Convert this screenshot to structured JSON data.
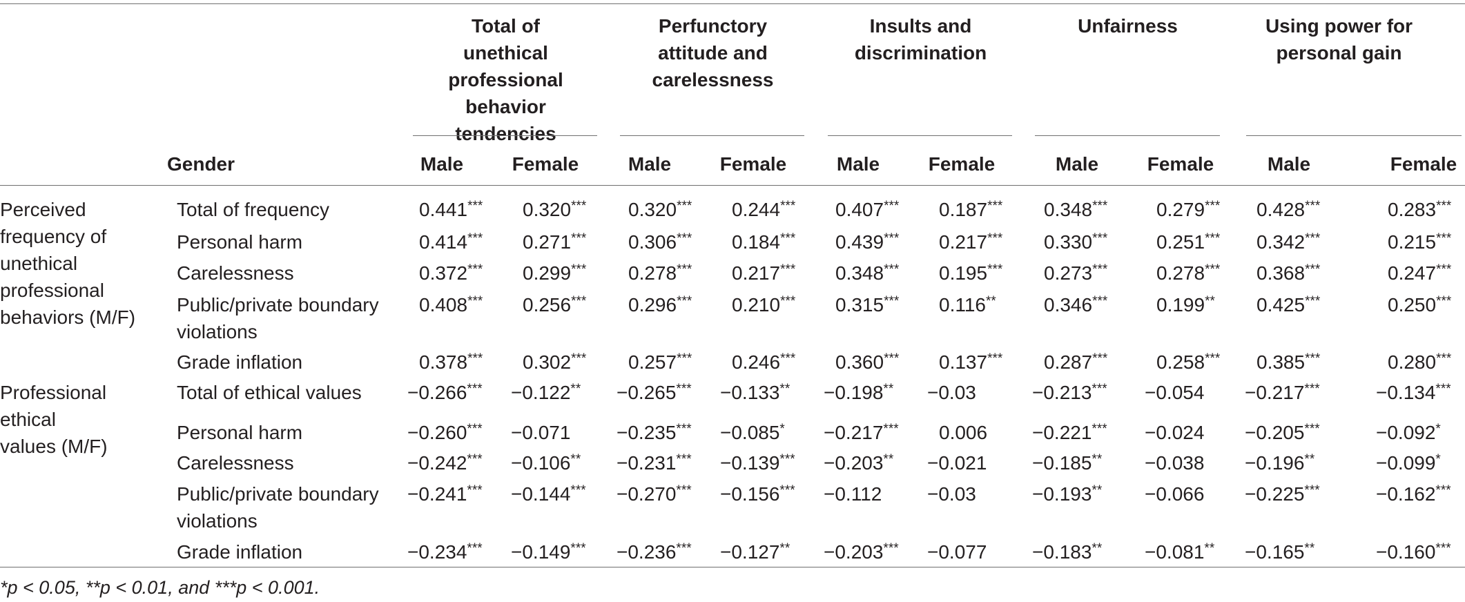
{
  "table": {
    "group_headers": [
      {
        "label": "Total of unethical professional behavior tendencies"
      },
      {
        "label": "Perfunctory attitude and carelessness"
      },
      {
        "label": "Insults and discrimination"
      },
      {
        "label": "Unfairness"
      },
      {
        "label": "Using power for personal gain"
      }
    ],
    "gender_label": "Gender",
    "sub_headers": [
      "Male",
      "Female",
      "Male",
      "Female",
      "Male",
      "Female",
      "Male",
      "Female",
      "Male",
      "Female"
    ],
    "sections": [
      {
        "label": "Perceived frequency of unethical professional behaviors (M/F)",
        "rows": [
          {
            "label": "Total of frequency",
            "cells": [
              {
                "v": "0.441",
                "s": "***"
              },
              {
                "v": "0.320",
                "s": "***"
              },
              {
                "v": "0.320",
                "s": "***"
              },
              {
                "v": "0.244",
                "s": "***"
              },
              {
                "v": "0.407",
                "s": "***"
              },
              {
                "v": "0.187",
                "s": "***"
              },
              {
                "v": "0.348",
                "s": "***"
              },
              {
                "v": "0.279",
                "s": "***"
              },
              {
                "v": "0.428",
                "s": "***"
              },
              {
                "v": "0.283",
                "s": "***"
              }
            ]
          },
          {
            "label": "Personal harm",
            "cells": [
              {
                "v": "0.414",
                "s": "***"
              },
              {
                "v": "0.271",
                "s": "***"
              },
              {
                "v": "0.306",
                "s": "***"
              },
              {
                "v": "0.184",
                "s": "***"
              },
              {
                "v": "0.439",
                "s": "***"
              },
              {
                "v": "0.217",
                "s": "***"
              },
              {
                "v": "0.330",
                "s": "***"
              },
              {
                "v": "0.251",
                "s": "***"
              },
              {
                "v": "0.342",
                "s": "***"
              },
              {
                "v": "0.215",
                "s": "***"
              }
            ]
          },
          {
            "label": "Carelessness",
            "cells": [
              {
                "v": "0.372",
                "s": "***"
              },
              {
                "v": "0.299",
                "s": "***"
              },
              {
                "v": "0.278",
                "s": "***"
              },
              {
                "v": "0.217",
                "s": "***"
              },
              {
                "v": "0.348",
                "s": "***"
              },
              {
                "v": "0.195",
                "s": "***"
              },
              {
                "v": "0.273",
                "s": "***"
              },
              {
                "v": "0.278",
                "s": "***"
              },
              {
                "v": "0.368",
                "s": "***"
              },
              {
                "v": "0.247",
                "s": "***"
              }
            ]
          },
          {
            "label": "Public/private boundary violations",
            "cells": [
              {
                "v": "0.408",
                "s": "***"
              },
              {
                "v": "0.256",
                "s": "***"
              },
              {
                "v": "0.296",
                "s": "***"
              },
              {
                "v": "0.210",
                "s": "***"
              },
              {
                "v": "0.315",
                "s": "***"
              },
              {
                "v": "0.116",
                "s": "**"
              },
              {
                "v": "0.346",
                "s": "***"
              },
              {
                "v": "0.199",
                "s": "**"
              },
              {
                "v": "0.425",
                "s": "***"
              },
              {
                "v": "0.250",
                "s": "***"
              }
            ]
          },
          {
            "label": "Grade inflation",
            "cells": [
              {
                "v": "0.378",
                "s": "***"
              },
              {
                "v": "0.302",
                "s": "***"
              },
              {
                "v": "0.257",
                "s": "***"
              },
              {
                "v": "0.246",
                "s": "***"
              },
              {
                "v": "0.360",
                "s": "***"
              },
              {
                "v": "0.137",
                "s": "***"
              },
              {
                "v": "0.287",
                "s": "***"
              },
              {
                "v": "0.258",
                "s": "***"
              },
              {
                "v": "0.385",
                "s": "***"
              },
              {
                "v": "0.280",
                "s": "***"
              }
            ]
          }
        ]
      },
      {
        "label": "Professional ethical values (M/F)",
        "rows": [
          {
            "label": "Total of ethical values",
            "cells": [
              {
                "v": "−0.266",
                "s": "***"
              },
              {
                "v": "−0.122",
                "s": "**"
              },
              {
                "v": "−0.265",
                "s": "***"
              },
              {
                "v": "−0.133",
                "s": "**"
              },
              {
                "v": "−0.198",
                "s": "**"
              },
              {
                "v": "−0.03",
                "s": ""
              },
              {
                "v": "−0.213",
                "s": "***"
              },
              {
                "v": "−0.054",
                "s": ""
              },
              {
                "v": "−0.217",
                "s": "***"
              },
              {
                "v": "−0.134",
                "s": "***"
              }
            ]
          },
          {
            "label": "Personal harm",
            "cells": [
              {
                "v": "−0.260",
                "s": "***"
              },
              {
                "v": "−0.071",
                "s": ""
              },
              {
                "v": "−0.235",
                "s": "***"
              },
              {
                "v": "−0.085",
                "s": "*"
              },
              {
                "v": "−0.217",
                "s": "***"
              },
              {
                "v": "0.006",
                "s": ""
              },
              {
                "v": "−0.221",
                "s": "***"
              },
              {
                "v": "−0.024",
                "s": ""
              },
              {
                "v": "−0.205",
                "s": "***"
              },
              {
                "v": "−0.092",
                "s": "*"
              }
            ]
          },
          {
            "label": "Carelessness",
            "cells": [
              {
                "v": "−0.242",
                "s": "***"
              },
              {
                "v": "−0.106",
                "s": "**"
              },
              {
                "v": "−0.231",
                "s": "***"
              },
              {
                "v": "−0.139",
                "s": "***"
              },
              {
                "v": "−0.203",
                "s": "**"
              },
              {
                "v": "−0.021",
                "s": ""
              },
              {
                "v": "−0.185",
                "s": "**"
              },
              {
                "v": "−0.038",
                "s": ""
              },
              {
                "v": "−0.196",
                "s": "**"
              },
              {
                "v": "−0.099",
                "s": "*"
              }
            ]
          },
          {
            "label": "Public/private boundary violations",
            "cells": [
              {
                "v": "−0.241",
                "s": "***"
              },
              {
                "v": "−0.144",
                "s": "***"
              },
              {
                "v": "−0.270",
                "s": "***"
              },
              {
                "v": "−0.156",
                "s": "***"
              },
              {
                "v": "−0.112",
                "s": ""
              },
              {
                "v": "−0.03",
                "s": ""
              },
              {
                "v": "−0.193",
                "s": "**"
              },
              {
                "v": "−0.066",
                "s": ""
              },
              {
                "v": "−0.225",
                "s": "***"
              },
              {
                "v": "−0.162",
                "s": "***"
              }
            ]
          },
          {
            "label": "Grade inflation",
            "cells": [
              {
                "v": "−0.234",
                "s": "***"
              },
              {
                "v": "−0.149",
                "s": "***"
              },
              {
                "v": "−0.236",
                "s": "***"
              },
              {
                "v": "−0.127",
                "s": "**"
              },
              {
                "v": "−0.203",
                "s": "***"
              },
              {
                "v": "−0.077",
                "s": ""
              },
              {
                "v": "−0.183",
                "s": "**"
              },
              {
                "v": "−0.081",
                "s": "**"
              },
              {
                "v": "−0.165",
                "s": "**"
              },
              {
                "v": "−0.160",
                "s": "***"
              }
            ]
          }
        ]
      }
    ],
    "footnote": "*p < 0.05, **p < 0.01, and ***p < 0.001."
  }
}
